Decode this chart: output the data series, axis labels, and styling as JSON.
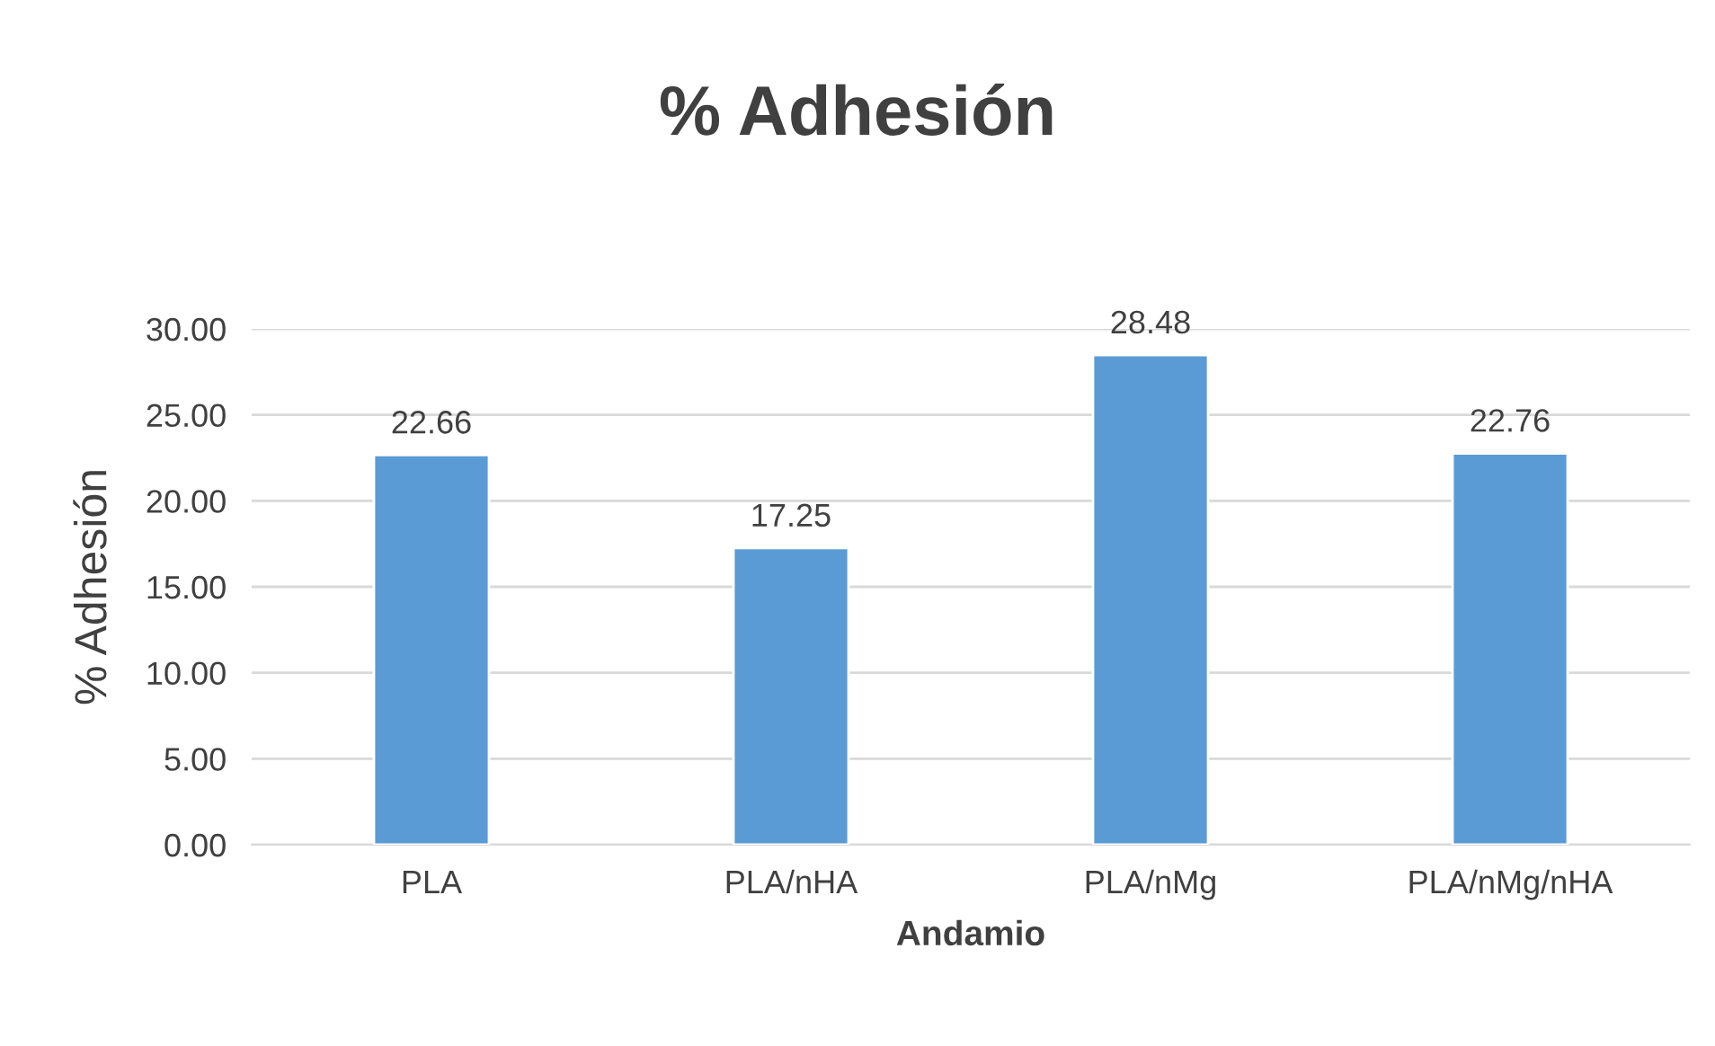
{
  "chart_data": {
    "type": "bar",
    "title": "% Adhesión",
    "xlabel": "Andamio",
    "ylabel": "% Adhesión",
    "categories": [
      "PLA",
      "PLA/nHA",
      "PLA/nMg",
      "PLA/nMg/nHA"
    ],
    "values": [
      22.66,
      17.25,
      28.48,
      22.76
    ],
    "color": "#5b9bd5",
    "ylim": [
      0,
      30
    ],
    "yticks": [
      {
        "value": 0,
        "label": "0.00"
      },
      {
        "value": 5,
        "label": "5.00"
      },
      {
        "value": 10,
        "label": "10.00"
      },
      {
        "value": 15,
        "label": "15.00"
      },
      {
        "value": 20,
        "label": "20.00"
      },
      {
        "value": 25,
        "label": "25.00"
      },
      {
        "value": 30,
        "label": "30.00"
      }
    ],
    "grid": "y",
    "legend": false,
    "data_labels": true
  }
}
